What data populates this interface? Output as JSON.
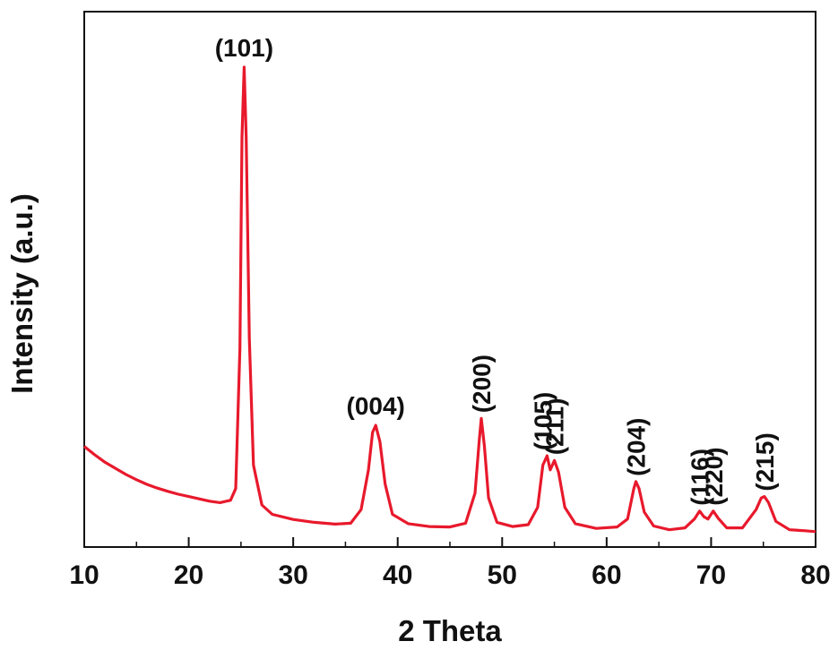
{
  "chart_data": {
    "type": "line",
    "xlabel": "2 Theta",
    "ylabel": "Intensity (a.u.)",
    "xlim": [
      10,
      80
    ],
    "ylim": [
      0,
      100
    ],
    "x_ticks": [
      10,
      20,
      30,
      40,
      50,
      60,
      70,
      80
    ],
    "grid": false,
    "legend": "none",
    "line_color": "#e8192c",
    "series": [
      {
        "x": [
          10,
          11,
          12,
          13,
          14,
          15,
          16,
          17,
          18,
          19,
          20,
          21,
          22,
          23,
          24,
          24.5,
          24.9,
          25.1,
          25.3,
          25.5,
          25.8,
          26.2,
          27,
          28,
          30,
          32,
          34,
          35.5,
          36.5,
          37.2,
          37.6,
          37.9,
          38.3,
          38.8,
          39.5,
          41,
          43,
          45,
          46.5,
          47.4,
          47.8,
          48.0,
          48.3,
          48.7,
          49.5,
          51,
          52.5,
          53.4,
          53.9,
          54.3,
          54.6,
          55.0,
          55.4,
          56.0,
          57,
          59,
          61,
          62,
          62.6,
          62.8,
          63.1,
          63.6,
          64.5,
          66,
          67.5,
          68.4,
          68.9,
          69.3,
          69.7,
          70.2,
          70.7,
          71.5,
          73,
          74.3,
          74.8,
          75.1,
          75.5,
          76.2,
          77.5,
          79,
          80
        ],
        "y": [
          19,
          17.2,
          15.6,
          14.3,
          13,
          11.9,
          10.9,
          10.1,
          9.4,
          8.8,
          8.3,
          7.8,
          7.3,
          7.0,
          7.5,
          10,
          40,
          85,
          100,
          85,
          42,
          15,
          6.5,
          4.5,
          3.4,
          2.8,
          2.4,
          2.6,
          5.5,
          14,
          22,
          23.5,
          20,
          11,
          4.5,
          2.5,
          1.9,
          1.8,
          2.6,
          9,
          20,
          25,
          19,
          8,
          2.8,
          1.9,
          2.3,
          6,
          15,
          17,
          14,
          16,
          13.5,
          6,
          2.5,
          1.5,
          1.8,
          3.5,
          10,
          11.5,
          10,
          5,
          2,
          1.2,
          1.6,
          3.5,
          5.2,
          4,
          3.5,
          5.2,
          3.6,
          1.6,
          1.6,
          5.5,
          8,
          8.3,
          7,
          3,
          1.2,
          1,
          0.8
        ]
      }
    ],
    "annotations": [
      {
        "text": "(101)",
        "x": 25.3,
        "y": 100,
        "rotate": false
      },
      {
        "text": "(004)",
        "x": 37.9,
        "y": 23.5,
        "rotate": false
      },
      {
        "text": "(200)",
        "x": 48.0,
        "y": 25,
        "rotate": true
      },
      {
        "text": "(105)",
        "x": 53.9,
        "y": 17,
        "rotate": true
      },
      {
        "text": "(211)",
        "x": 55.0,
        "y": 16,
        "rotate": true
      },
      {
        "text": "(204)",
        "x": 62.8,
        "y": 11.5,
        "rotate": true
      },
      {
        "text": "(116)",
        "x": 68.9,
        "y": 5.2,
        "rotate": true
      },
      {
        "text": "(220)",
        "x": 70.2,
        "y": 5.2,
        "rotate": true
      },
      {
        "text": "(215)",
        "x": 75.1,
        "y": 8.3,
        "rotate": true
      }
    ]
  }
}
